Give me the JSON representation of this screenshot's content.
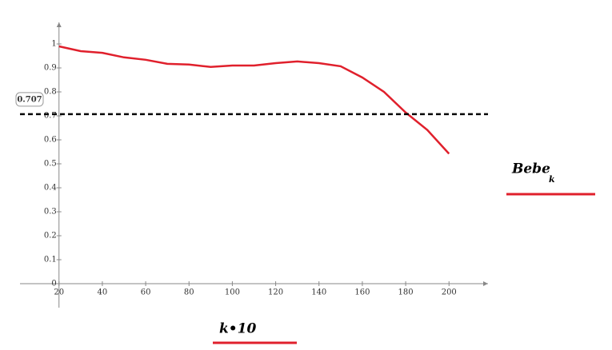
{
  "chart_data": {
    "type": "line",
    "x": [
      20,
      30,
      40,
      50,
      60,
      70,
      80,
      90,
      100,
      110,
      120,
      130,
      140,
      150,
      160,
      170,
      180,
      190,
      200
    ],
    "series": [
      {
        "name": "Bebe",
        "name_subscript": "k",
        "color": "#e0202c",
        "values": [
          0.99,
          0.97,
          0.963,
          0.944,
          0.934,
          0.917,
          0.914,
          0.904,
          0.91,
          0.91,
          0.92,
          0.927,
          0.92,
          0.907,
          0.86,
          0.8,
          0.714,
          0.641,
          0.542
        ]
      }
    ],
    "x_label": "k•10",
    "xlim": [
      2,
      218
    ],
    "xticks": [
      20,
      40,
      60,
      80,
      100,
      120,
      140,
      160,
      180,
      200
    ],
    "ylim": [
      -0.1,
      1.09
    ],
    "yticks": [
      0,
      0.1,
      0.2,
      0.3,
      0.4,
      0.5,
      0.6,
      0.7,
      0.8,
      0.9,
      1
    ],
    "markers": [
      {
        "value": 0.707,
        "label": "0.707",
        "color": "#000"
      }
    ]
  }
}
